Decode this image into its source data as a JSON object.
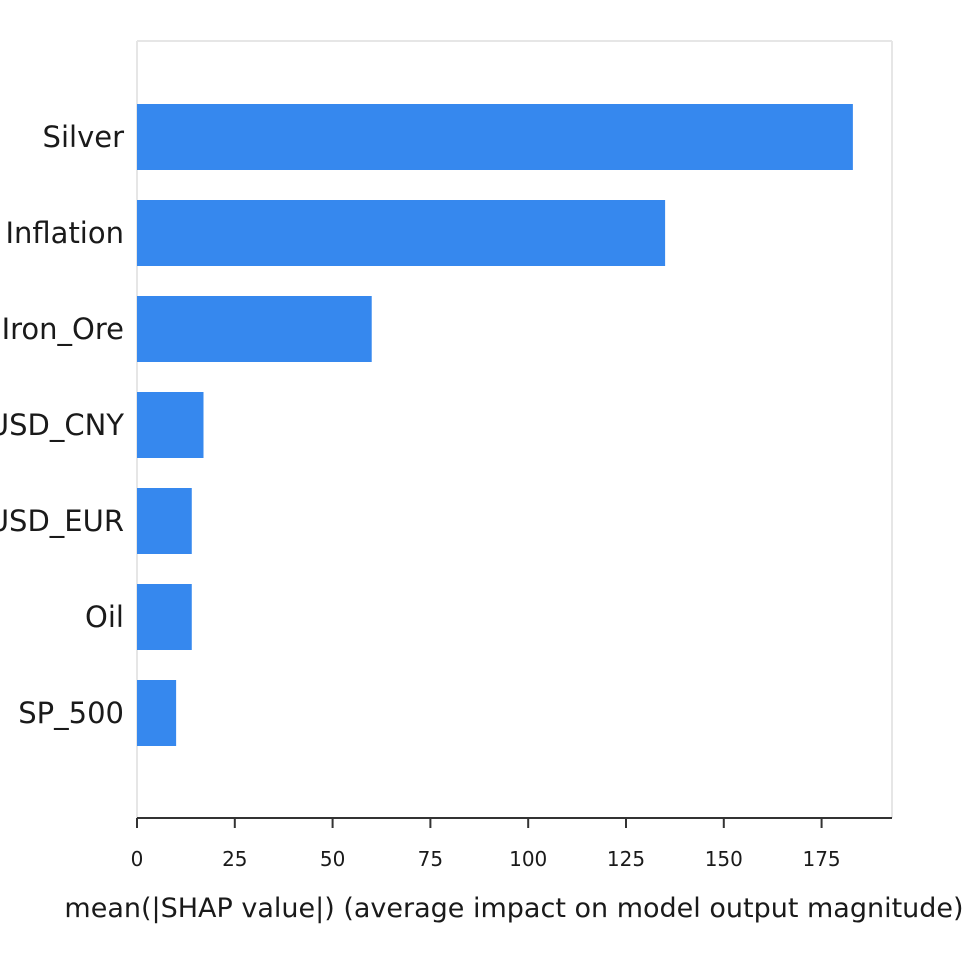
{
  "chart_data": {
    "type": "bar",
    "orientation": "horizontal",
    "categories": [
      "Silver",
      "Inflation",
      "Iron_Ore",
      "USD_CNY",
      "USD_EUR",
      "Oil",
      "SP_500"
    ],
    "values": [
      183,
      135,
      60,
      17,
      14,
      14,
      10
    ],
    "xlabel": "mean(|SHAP value|) (average impact on model output magnitude)",
    "ylabel": "",
    "xlim": [
      0,
      193
    ],
    "xticks": [
      0,
      25,
      50,
      75,
      100,
      125,
      150,
      175
    ],
    "xtick_labels": [
      "0",
      "25",
      "50",
      "75",
      "100",
      "125",
      "150",
      "175"
    ],
    "bar_color": "#3688ee",
    "grid": false,
    "legend": "none"
  }
}
